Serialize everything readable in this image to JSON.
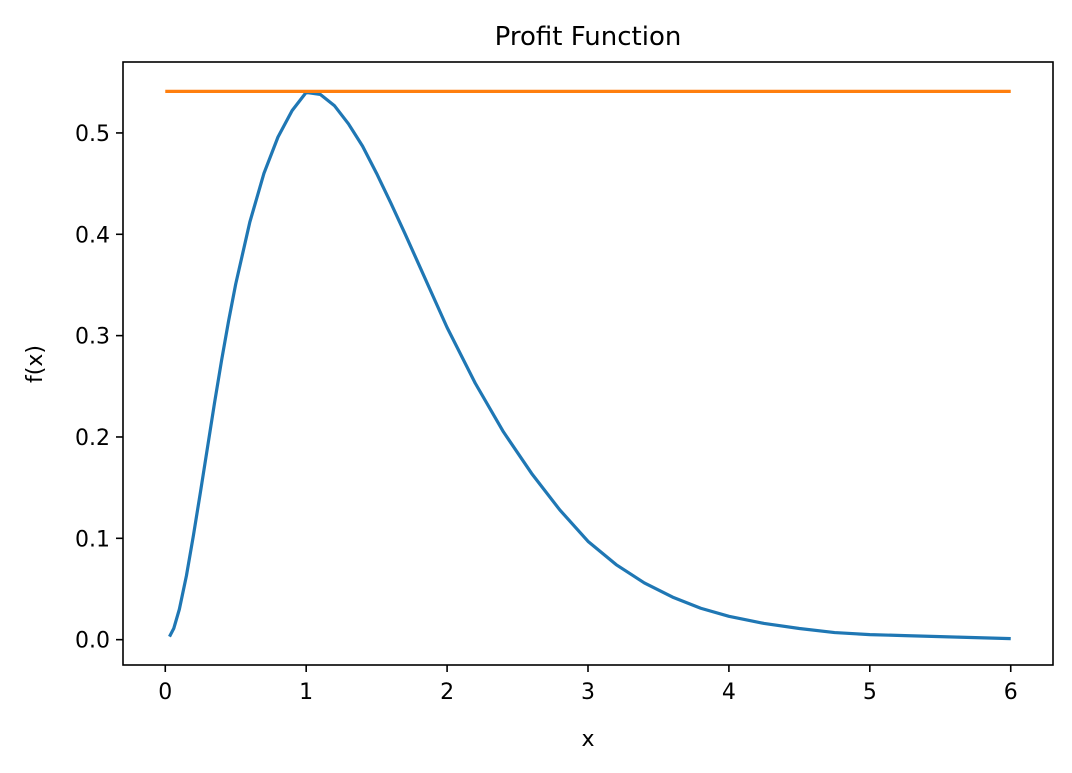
{
  "chart_data": {
    "type": "line",
    "title": "Profit Function",
    "xlabel": "x",
    "ylabel": "f(x)",
    "xlim": [
      -0.3,
      6.3
    ],
    "ylim": [
      -0.025,
      0.57
    ],
    "xticks": [
      0,
      1,
      2,
      3,
      4,
      5,
      6
    ],
    "xtick_labels": [
      "0",
      "1",
      "2",
      "3",
      "4",
      "5",
      "6"
    ],
    "yticks": [
      0.0,
      0.1,
      0.2,
      0.3,
      0.4,
      0.5
    ],
    "ytick_labels": [
      "0.0",
      "0.1",
      "0.2",
      "0.3",
      "0.4",
      "0.5"
    ],
    "grid": false,
    "series": [
      {
        "color": "#1f77b4",
        "x": [
          0.03,
          0.06,
          0.1,
          0.15,
          0.2,
          0.25,
          0.3,
          0.35,
          0.4,
          0.45,
          0.5,
          0.6,
          0.7,
          0.8,
          0.9,
          1.0,
          1.1,
          1.2,
          1.3,
          1.4,
          1.5,
          1.6,
          1.7,
          1.8,
          1.9,
          2.0,
          2.2,
          2.4,
          2.6,
          2.8,
          3.0,
          3.2,
          3.4,
          3.6,
          3.8,
          4.0,
          4.25,
          4.5,
          4.75,
          5.0,
          5.25,
          5.5,
          5.75,
          6.0
        ],
        "y": [
          0.003,
          0.011,
          0.03,
          0.063,
          0.103,
          0.146,
          0.19,
          0.234,
          0.276,
          0.315,
          0.351,
          0.412,
          0.46,
          0.496,
          0.522,
          0.54,
          0.538,
          0.527,
          0.509,
          0.487,
          0.46,
          0.431,
          0.401,
          0.37,
          0.339,
          0.308,
          0.253,
          0.205,
          0.164,
          0.128,
          0.097,
          0.074,
          0.056,
          0.042,
          0.031,
          0.023,
          0.016,
          0.011,
          0.007,
          0.005,
          0.004,
          0.003,
          0.002,
          0.001
        ]
      },
      {
        "color": "#ff7f0e",
        "x": [
          0,
          6
        ],
        "y": [
          0.541,
          0.541
        ]
      }
    ]
  }
}
